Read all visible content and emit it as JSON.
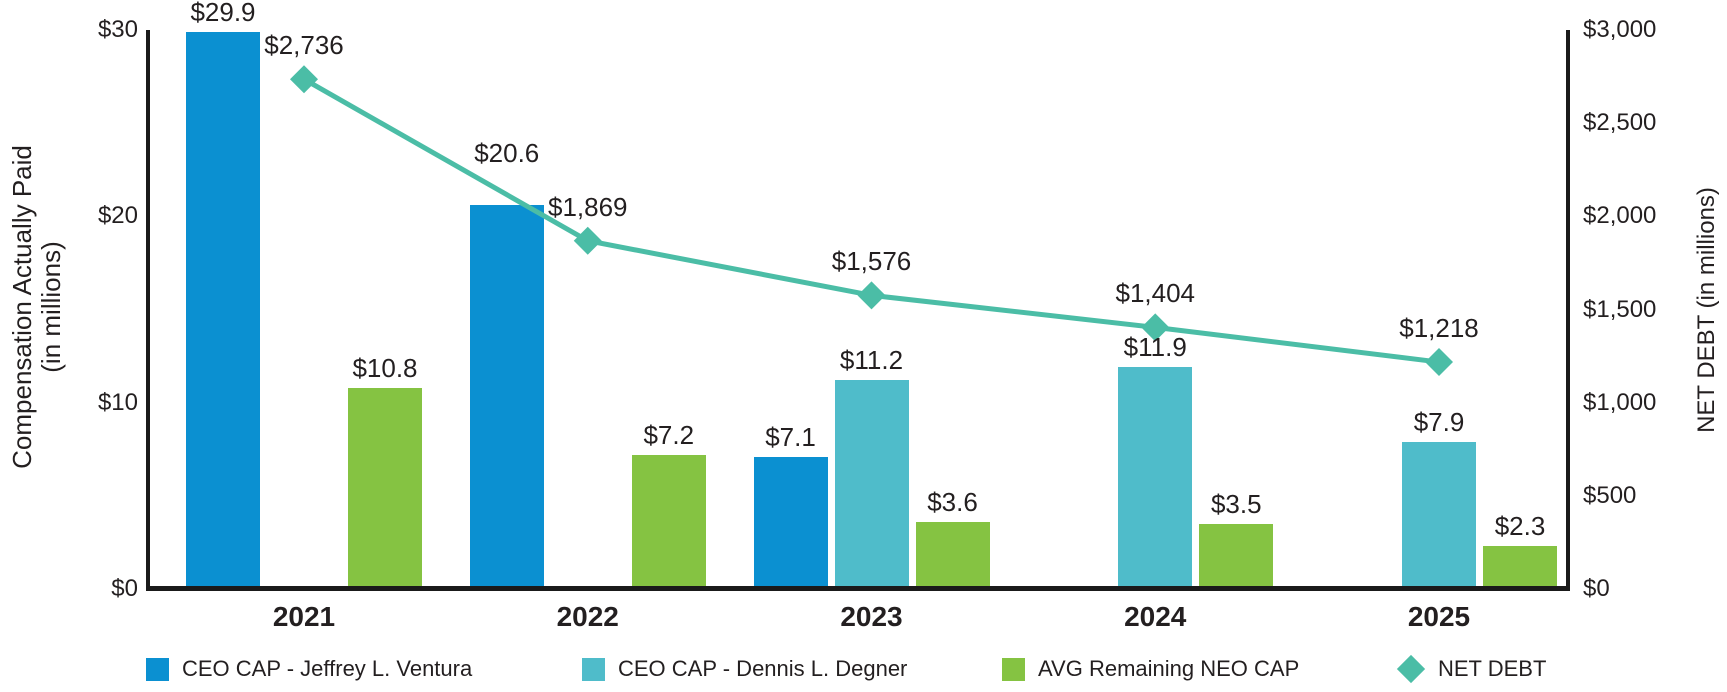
{
  "chart_data": {
    "type": "bar",
    "subtype": "grouped-bar-with-line-dual-axis",
    "categories": [
      "2021",
      "2022",
      "2023",
      "2024",
      "2025"
    ],
    "series": [
      {
        "name": "CEO CAP - Jeffrey L. Ventura",
        "type": "bar",
        "axis": "left",
        "slot": 0,
        "color": "#0b90d1",
        "values": [
          29.9,
          20.6,
          7.1,
          null,
          null
        ],
        "labels": [
          "$29.9",
          "$20.6",
          "$7.1",
          null,
          null
        ],
        "label_dy": [
          0,
          -32,
          0,
          0,
          0
        ]
      },
      {
        "name": "CEO CAP - Dennis L. Degner",
        "type": "bar",
        "axis": "left",
        "slot": 1,
        "color": "#4fbcca",
        "values": [
          null,
          null,
          11.2,
          11.9,
          7.9
        ],
        "labels": [
          null,
          null,
          "$11.2",
          "$11.9",
          "$7.9"
        ],
        "label_dy": [
          0,
          0,
          0,
          0,
          0
        ]
      },
      {
        "name": "AVG Remaining NEO CAP",
        "type": "bar",
        "axis": "left",
        "slot": 2,
        "color": "#85c342",
        "values": [
          10.8,
          7.2,
          3.6,
          3.5,
          2.3
        ],
        "labels": [
          "$10.8",
          "$7.2",
          "$3.6",
          "$3.5",
          "$2.3"
        ],
        "label_dy": [
          0,
          0,
          0,
          0,
          0
        ]
      },
      {
        "name": "NET DEBT",
        "type": "line",
        "axis": "right",
        "color": "#4bbda6",
        "marker": "diamond",
        "values": [
          2736,
          1869,
          1576,
          1404,
          1218
        ],
        "labels": [
          "$2,736",
          "$1,869",
          "$1,576",
          "$1,404",
          "$1,218"
        ]
      }
    ],
    "left_axis": {
      "title": [
        "Compensation Actually Paid",
        "(in millions)"
      ],
      "max": 30,
      "min": 0,
      "ticks": [
        {
          "label": "$0",
          "value": 0
        },
        {
          "label": "$10",
          "value": 10
        },
        {
          "label": "$20",
          "value": 20
        },
        {
          "label": "$30",
          "value": 30
        }
      ]
    },
    "right_axis": {
      "title": "NET DEBT (in millions)",
      "max": 3000,
      "min": 0,
      "ticks": [
        {
          "label": "$0",
          "value": 0
        },
        {
          "label": "$500",
          "value": 500
        },
        {
          "label": "$1,000",
          "value": 1000
        },
        {
          "label": "$1,500",
          "value": 1500
        },
        {
          "label": "$2,000",
          "value": 2000
        },
        {
          "label": "$2,500",
          "value": 2500
        },
        {
          "label": "$3,000",
          "value": 3000
        }
      ]
    },
    "legend": {
      "position": "bottom",
      "items": [
        "CEO CAP - Jeffrey L. Ventura",
        "CEO CAP - Dennis L. Degner",
        "AVG Remaining NEO CAP",
        "NET DEBT"
      ]
    },
    "grid": false,
    "text_color": "#231f20",
    "axis_line_color": "#1a1a1a"
  }
}
